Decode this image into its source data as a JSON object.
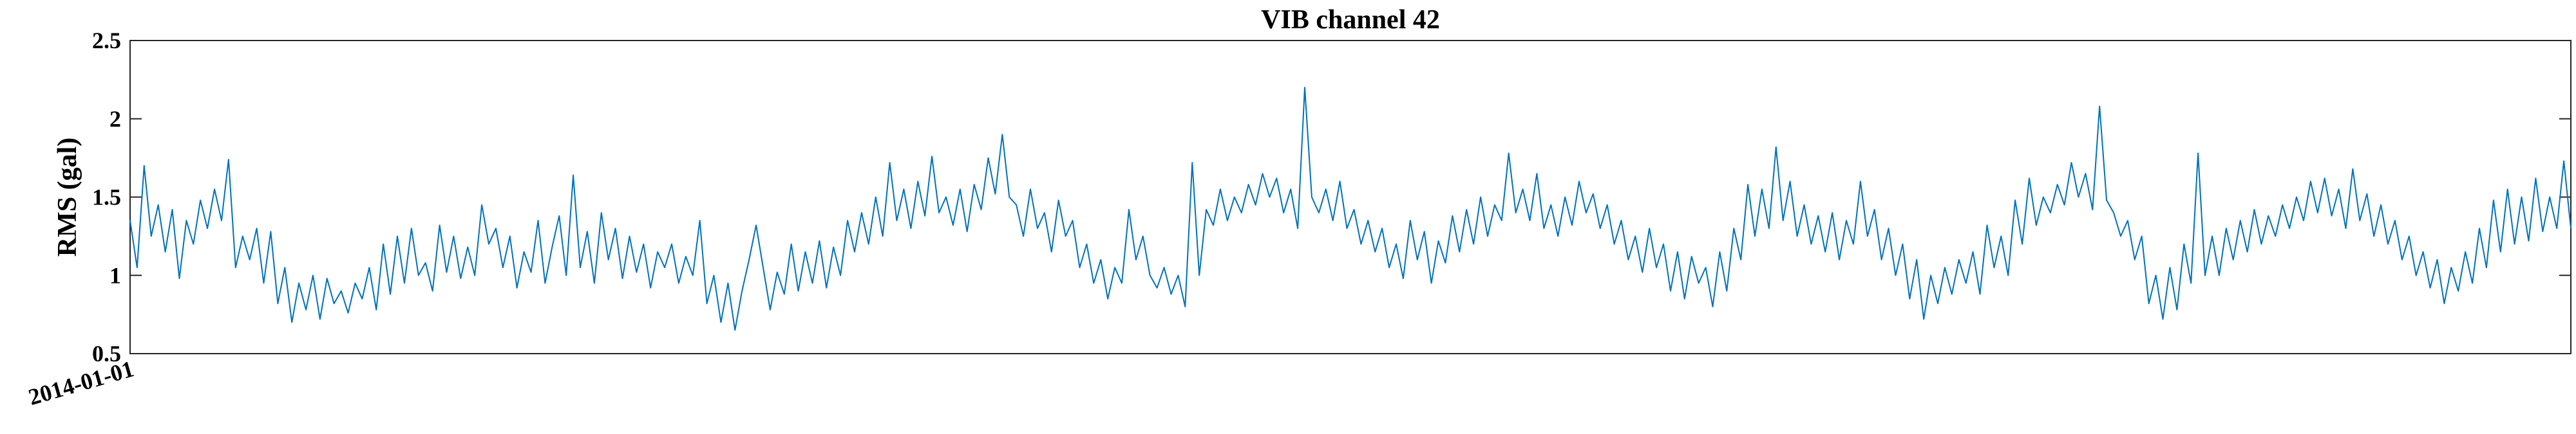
{
  "chart_data": {
    "type": "line",
    "title": "VIB channel 42",
    "xlabel": "",
    "ylabel": "RMS (gal)",
    "ylim": [
      0.5,
      2.5
    ],
    "yticks": [
      "0.5",
      "1",
      "1.5",
      "2",
      "2.5"
    ],
    "xtick_labels": [
      "2014-01-01"
    ],
    "grid": false,
    "line_color": "#0072BD",
    "series": [
      {
        "values": [
          1.35,
          1.05,
          1.7,
          1.25,
          1.45,
          1.15,
          1.42,
          0.98,
          1.35,
          1.2,
          1.48,
          1.3,
          1.55,
          1.35,
          1.74,
          1.05,
          1.25,
          1.1,
          1.3,
          0.95,
          1.28,
          0.82,
          1.05,
          0.7,
          0.95,
          0.78,
          1.0,
          0.72,
          0.98,
          0.82,
          0.9,
          0.76,
          0.95,
          0.85,
          1.05,
          0.78,
          1.2,
          0.88,
          1.25,
          0.95,
          1.3,
          1.0,
          1.08,
          0.9,
          1.32,
          1.02,
          1.25,
          0.98,
          1.18,
          1.0,
          1.45,
          1.2,
          1.3,
          1.05,
          1.25,
          0.92,
          1.15,
          1.02,
          1.35,
          0.95,
          1.18,
          1.38,
          1.0,
          1.64,
          1.05,
          1.28,
          0.95,
          1.4,
          1.1,
          1.3,
          0.98,
          1.25,
          1.02,
          1.2,
          0.92,
          1.15,
          1.05,
          1.2,
          0.95,
          1.12,
          1.0,
          1.35,
          0.82,
          1.0,
          0.7,
          0.95,
          0.65,
          0.9,
          1.1,
          1.32,
          1.05,
          0.78,
          1.02,
          0.88,
          1.2,
          0.9,
          1.15,
          0.95,
          1.22,
          0.92,
          1.18,
          1.0,
          1.35,
          1.15,
          1.4,
          1.2,
          1.5,
          1.25,
          1.72,
          1.35,
          1.55,
          1.3,
          1.6,
          1.38,
          1.76,
          1.4,
          1.5,
          1.32,
          1.55,
          1.28,
          1.58,
          1.42,
          1.75,
          1.52,
          1.9,
          1.5,
          1.45,
          1.25,
          1.55,
          1.3,
          1.4,
          1.15,
          1.48,
          1.25,
          1.35,
          1.05,
          1.2,
          0.95,
          1.1,
          0.85,
          1.05,
          0.95,
          1.42,
          1.1,
          1.25,
          1.0,
          0.92,
          1.05,
          0.88,
          1.0,
          0.8,
          1.72,
          1.0,
          1.42,
          1.32,
          1.55,
          1.35,
          1.5,
          1.4,
          1.58,
          1.45,
          1.65,
          1.5,
          1.62,
          1.4,
          1.55,
          1.3,
          2.2,
          1.5,
          1.4,
          1.55,
          1.35,
          1.6,
          1.3,
          1.42,
          1.2,
          1.35,
          1.15,
          1.3,
          1.05,
          1.2,
          0.98,
          1.35,
          1.1,
          1.28,
          0.95,
          1.22,
          1.08,
          1.38,
          1.15,
          1.42,
          1.2,
          1.5,
          1.25,
          1.45,
          1.35,
          1.78,
          1.4,
          1.55,
          1.35,
          1.65,
          1.3,
          1.45,
          1.25,
          1.5,
          1.32,
          1.6,
          1.4,
          1.52,
          1.3,
          1.45,
          1.2,
          1.35,
          1.1,
          1.25,
          1.02,
          1.3,
          1.05,
          1.2,
          0.9,
          1.15,
          0.85,
          1.12,
          0.95,
          1.05,
          0.8,
          1.15,
          0.9,
          1.3,
          1.1,
          1.58,
          1.25,
          1.55,
          1.3,
          1.82,
          1.35,
          1.6,
          1.25,
          1.45,
          1.2,
          1.38,
          1.15,
          1.4,
          1.1,
          1.35,
          1.2,
          1.6,
          1.25,
          1.42,
          1.1,
          1.3,
          1.0,
          1.2,
          0.85,
          1.1,
          0.72,
          1.0,
          0.82,
          1.05,
          0.88,
          1.1,
          0.95,
          1.15,
          0.88,
          1.32,
          1.05,
          1.25,
          1.0,
          1.48,
          1.2,
          1.62,
          1.32,
          1.5,
          1.4,
          1.58,
          1.45,
          1.72,
          1.5,
          1.65,
          1.42,
          2.08,
          1.48,
          1.4,
          1.25,
          1.35,
          1.1,
          1.25,
          0.82,
          1.0,
          0.72,
          1.05,
          0.78,
          1.2,
          0.95,
          1.78,
          1.0,
          1.25,
          1.0,
          1.3,
          1.1,
          1.35,
          1.15,
          1.42,
          1.2,
          1.38,
          1.25,
          1.45,
          1.3,
          1.5,
          1.35,
          1.6,
          1.4,
          1.62,
          1.38,
          1.55,
          1.3,
          1.68,
          1.35,
          1.52,
          1.25,
          1.45,
          1.2,
          1.35,
          1.1,
          1.25,
          1.0,
          1.15,
          0.92,
          1.1,
          0.82,
          1.05,
          0.9,
          1.15,
          0.95,
          1.3,
          1.05,
          1.48,
          1.15,
          1.55,
          1.2,
          1.5,
          1.22,
          1.62,
          1.28,
          1.5,
          1.3,
          1.73,
          1.3
        ]
      }
    ]
  }
}
